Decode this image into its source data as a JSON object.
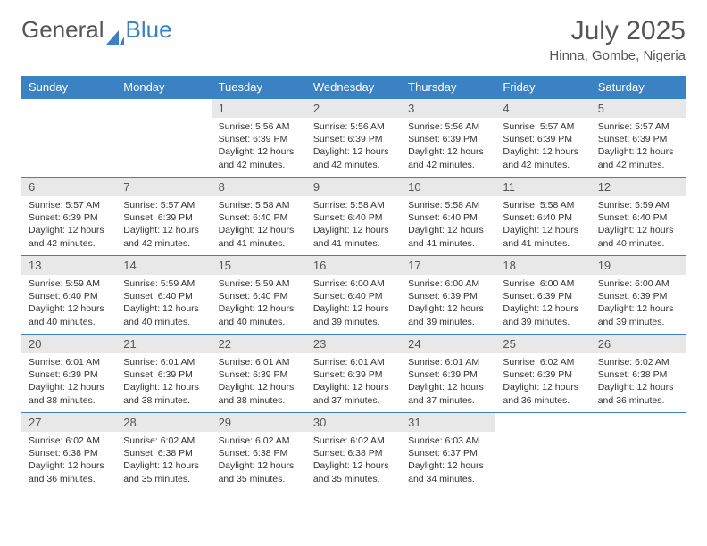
{
  "brand": {
    "part1": "General",
    "part2": "Blue"
  },
  "title": "July 2025",
  "location": "Hinna, Gombe, Nigeria",
  "colors": {
    "header_bg": "#3b82c4",
    "header_text": "#ffffff",
    "daynum_bg": "#e8e8e8",
    "text": "#333333",
    "border": "#3b82c4",
    "page_bg": "#ffffff"
  },
  "typography": {
    "title_fontsize": 30,
    "location_fontsize": 15,
    "dayheader_fontsize": 13,
    "daynum_fontsize": 13,
    "body_fontsize": 10.5
  },
  "days_of_week": [
    "Sunday",
    "Monday",
    "Tuesday",
    "Wednesday",
    "Thursday",
    "Friday",
    "Saturday"
  ],
  "first_weekday_index": 2,
  "cells": [
    {
      "n": 1,
      "sunrise": "5:56 AM",
      "sunset": "6:39 PM",
      "daylight": "12 hours and 42 minutes."
    },
    {
      "n": 2,
      "sunrise": "5:56 AM",
      "sunset": "6:39 PM",
      "daylight": "12 hours and 42 minutes."
    },
    {
      "n": 3,
      "sunrise": "5:56 AM",
      "sunset": "6:39 PM",
      "daylight": "12 hours and 42 minutes."
    },
    {
      "n": 4,
      "sunrise": "5:57 AM",
      "sunset": "6:39 PM",
      "daylight": "12 hours and 42 minutes."
    },
    {
      "n": 5,
      "sunrise": "5:57 AM",
      "sunset": "6:39 PM",
      "daylight": "12 hours and 42 minutes."
    },
    {
      "n": 6,
      "sunrise": "5:57 AM",
      "sunset": "6:39 PM",
      "daylight": "12 hours and 42 minutes."
    },
    {
      "n": 7,
      "sunrise": "5:57 AM",
      "sunset": "6:39 PM",
      "daylight": "12 hours and 42 minutes."
    },
    {
      "n": 8,
      "sunrise": "5:58 AM",
      "sunset": "6:40 PM",
      "daylight": "12 hours and 41 minutes."
    },
    {
      "n": 9,
      "sunrise": "5:58 AM",
      "sunset": "6:40 PM",
      "daylight": "12 hours and 41 minutes."
    },
    {
      "n": 10,
      "sunrise": "5:58 AM",
      "sunset": "6:40 PM",
      "daylight": "12 hours and 41 minutes."
    },
    {
      "n": 11,
      "sunrise": "5:58 AM",
      "sunset": "6:40 PM",
      "daylight": "12 hours and 41 minutes."
    },
    {
      "n": 12,
      "sunrise": "5:59 AM",
      "sunset": "6:40 PM",
      "daylight": "12 hours and 40 minutes."
    },
    {
      "n": 13,
      "sunrise": "5:59 AM",
      "sunset": "6:40 PM",
      "daylight": "12 hours and 40 minutes."
    },
    {
      "n": 14,
      "sunrise": "5:59 AM",
      "sunset": "6:40 PM",
      "daylight": "12 hours and 40 minutes."
    },
    {
      "n": 15,
      "sunrise": "5:59 AM",
      "sunset": "6:40 PM",
      "daylight": "12 hours and 40 minutes."
    },
    {
      "n": 16,
      "sunrise": "6:00 AM",
      "sunset": "6:40 PM",
      "daylight": "12 hours and 39 minutes."
    },
    {
      "n": 17,
      "sunrise": "6:00 AM",
      "sunset": "6:39 PM",
      "daylight": "12 hours and 39 minutes."
    },
    {
      "n": 18,
      "sunrise": "6:00 AM",
      "sunset": "6:39 PM",
      "daylight": "12 hours and 39 minutes."
    },
    {
      "n": 19,
      "sunrise": "6:00 AM",
      "sunset": "6:39 PM",
      "daylight": "12 hours and 39 minutes."
    },
    {
      "n": 20,
      "sunrise": "6:01 AM",
      "sunset": "6:39 PM",
      "daylight": "12 hours and 38 minutes."
    },
    {
      "n": 21,
      "sunrise": "6:01 AM",
      "sunset": "6:39 PM",
      "daylight": "12 hours and 38 minutes."
    },
    {
      "n": 22,
      "sunrise": "6:01 AM",
      "sunset": "6:39 PM",
      "daylight": "12 hours and 38 minutes."
    },
    {
      "n": 23,
      "sunrise": "6:01 AM",
      "sunset": "6:39 PM",
      "daylight": "12 hours and 37 minutes."
    },
    {
      "n": 24,
      "sunrise": "6:01 AM",
      "sunset": "6:39 PM",
      "daylight": "12 hours and 37 minutes."
    },
    {
      "n": 25,
      "sunrise": "6:02 AM",
      "sunset": "6:39 PM",
      "daylight": "12 hours and 36 minutes."
    },
    {
      "n": 26,
      "sunrise": "6:02 AM",
      "sunset": "6:38 PM",
      "daylight": "12 hours and 36 minutes."
    },
    {
      "n": 27,
      "sunrise": "6:02 AM",
      "sunset": "6:38 PM",
      "daylight": "12 hours and 36 minutes."
    },
    {
      "n": 28,
      "sunrise": "6:02 AM",
      "sunset": "6:38 PM",
      "daylight": "12 hours and 35 minutes."
    },
    {
      "n": 29,
      "sunrise": "6:02 AM",
      "sunset": "6:38 PM",
      "daylight": "12 hours and 35 minutes."
    },
    {
      "n": 30,
      "sunrise": "6:02 AM",
      "sunset": "6:38 PM",
      "daylight": "12 hours and 35 minutes."
    },
    {
      "n": 31,
      "sunrise": "6:03 AM",
      "sunset": "6:37 PM",
      "daylight": "12 hours and 34 minutes."
    }
  ],
  "labels": {
    "sunrise": "Sunrise:",
    "sunset": "Sunset:",
    "daylight": "Daylight:"
  }
}
